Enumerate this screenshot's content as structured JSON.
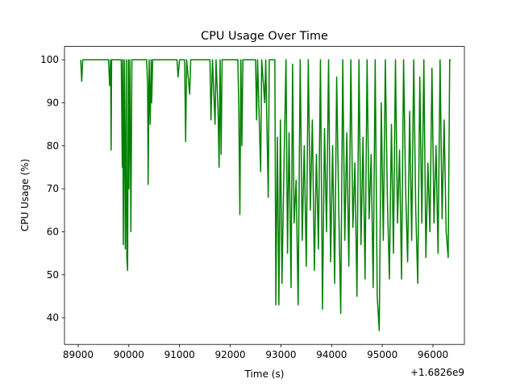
{
  "chart_data": {
    "type": "line",
    "title": "CPU Usage Over Time",
    "xlabel": "Time (s)",
    "ylabel": "CPU Usage (%)",
    "x_offset_label": "+1.6826e9",
    "color": "#008000",
    "x": [
      89050,
      89070,
      89090,
      89600,
      89620,
      89640,
      89650,
      89660,
      89850,
      89870,
      89880,
      89890,
      89910,
      89930,
      89950,
      89960,
      89975,
      89990,
      90000,
      90020,
      90040,
      90060,
      90350,
      90370,
      90380,
      90400,
      90420,
      90440,
      90450,
      90470,
      90950,
      90970,
      91000,
      91100,
      91120,
      91140,
      91200,
      91220,
      91600,
      91620,
      91650,
      91700,
      91720,
      91760,
      91780,
      91800,
      91820,
      91840,
      92150,
      92170,
      92190,
      92210,
      92230,
      92250,
      92500,
      92520,
      92540,
      92600,
      92620,
      92680,
      92700,
      92750,
      92770,
      92880,
      92900,
      92930,
      92960,
      92990,
      93020,
      93060,
      93100,
      93130,
      93160,
      93200,
      93230,
      93260,
      93300,
      93340,
      93380,
      93420,
      93460,
      93500,
      93540,
      93580,
      93620,
      93660,
      93700,
      93740,
      93780,
      93820,
      93860,
      93900,
      93940,
      93980,
      94020,
      94060,
      94100,
      94140,
      94180,
      94220,
      94260,
      94300,
      94340,
      94380,
      94420,
      94460,
      94500,
      94540,
      94580,
      94620,
      94660,
      94700,
      94740,
      94780,
      94820,
      94860,
      94900,
      94940,
      94980,
      95020,
      95060,
      95100,
      95140,
      95180,
      95220,
      95260,
      95300,
      95340,
      95380,
      95420,
      95460,
      95500,
      95540,
      95580,
      95620,
      95660,
      95700,
      95740,
      95780,
      95820,
      95860,
      95900,
      95940,
      95980,
      96020,
      96060,
      96100,
      96140,
      96180,
      96220,
      96260,
      96300,
      96330,
      96350
    ],
    "values": [
      100,
      95,
      100,
      100,
      94,
      100,
      79,
      100,
      100,
      75,
      100,
      57,
      100,
      56,
      100,
      54,
      51,
      100,
      70,
      100,
      60,
      100,
      100,
      94,
      71,
      100,
      85,
      100,
      90,
      100,
      100,
      96,
      100,
      100,
      81,
      100,
      92,
      100,
      100,
      86,
      100,
      85,
      100,
      88,
      75,
      100,
      78,
      100,
      100,
      88,
      64,
      100,
      80,
      100,
      100,
      86,
      100,
      74,
      100,
      90,
      100,
      68,
      100,
      100,
      43,
      82,
      43,
      86,
      48,
      75,
      100,
      55,
      83,
      47,
      99,
      62,
      72,
      43,
      100,
      58,
      80,
      52,
      100,
      65,
      86,
      51,
      78,
      56,
      100,
      42,
      84,
      60,
      100,
      53,
      80,
      48,
      96,
      66,
      41,
      100,
      58,
      83,
      52,
      100,
      61,
      76,
      45,
      100,
      57,
      82,
      49,
      100,
      63,
      78,
      47,
      100,
      45,
      37,
      90,
      58,
      100,
      68,
      49,
      85,
      55,
      100,
      62,
      79,
      49,
      100,
      70,
      53,
      88,
      58,
      100,
      65,
      48,
      96,
      62,
      100,
      54,
      76,
      60,
      98,
      62,
      80,
      55,
      100,
      63,
      86,
      60,
      54,
      100,
      100
    ],
    "xlim": [
      88730,
      96620
    ],
    "ylim": [
      33.8,
      103.1
    ],
    "xticks": [
      89000,
      90000,
      91000,
      92000,
      93000,
      94000,
      95000,
      96000
    ],
    "yticks": [
      40,
      50,
      60,
      70,
      80,
      90,
      100
    ]
  }
}
